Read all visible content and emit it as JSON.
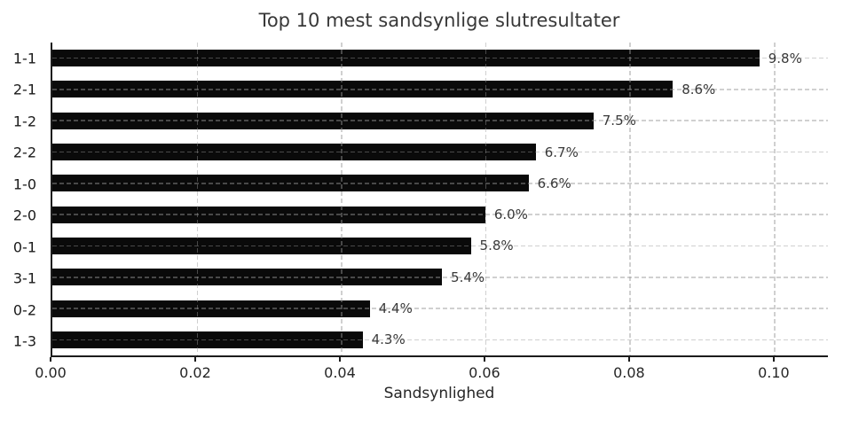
{
  "chart_data": {
    "type": "bar",
    "orientation": "horizontal",
    "title": "Top 10 mest sandsynlige slutresultater",
    "xlabel": "Sandsynlighed",
    "ylabel": "",
    "categories": [
      "1-1",
      "2-1",
      "1-2",
      "2-2",
      "1-0",
      "2-0",
      "0-1",
      "3-1",
      "0-2",
      "1-3"
    ],
    "values": [
      0.098,
      0.086,
      0.075,
      0.067,
      0.066,
      0.06,
      0.058,
      0.054,
      0.044,
      0.043
    ],
    "bar_labels": [
      "9.8%",
      "8.6%",
      "7.5%",
      "6.7%",
      "6.6%",
      "6.0%",
      "5.8%",
      "5.4%",
      "4.4%",
      "4.3%"
    ],
    "x_tick_labels": [
      "0.00",
      "0.02",
      "0.04",
      "0.06",
      "0.08",
      "0.10"
    ],
    "x_tick_values": [
      0.0,
      0.02,
      0.04,
      0.06,
      0.08,
      0.1
    ],
    "xlim": [
      0,
      0.1075
    ],
    "grid": "dashed",
    "legend": "none",
    "colors": {
      "bar": "#0a0a0a",
      "grid": "#969696",
      "spine": "#1c1c1c",
      "title_text": "#383838",
      "tick_text": "#262626",
      "value_text": "#3a3a3a",
      "background": "#ffffff"
    }
  }
}
